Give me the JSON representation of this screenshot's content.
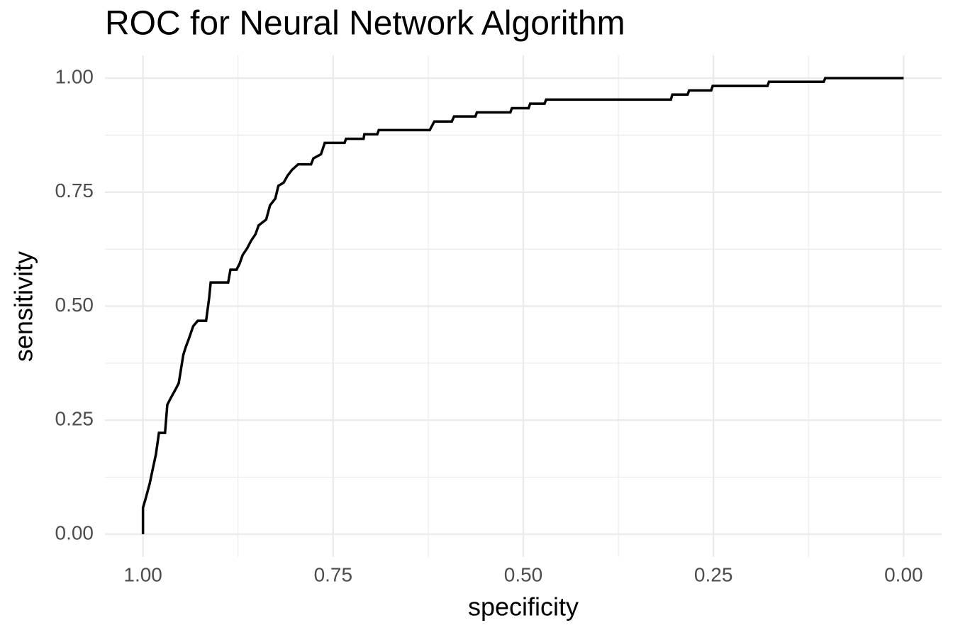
{
  "chart_data": {
    "type": "line",
    "title": "ROC for Neural Network Algorithm",
    "x_label": "specificity",
    "y_label": "sensitivity",
    "x": [
      1.0,
      1.0,
      0.996,
      0.991,
      0.987,
      0.983,
      0.979,
      0.971,
      0.968,
      0.963,
      0.958,
      0.953,
      0.95,
      0.947,
      0.944,
      0.94,
      0.934,
      0.928,
      0.917,
      0.913,
      0.911,
      0.888,
      0.885,
      0.877,
      0.873,
      0.869,
      0.863,
      0.858,
      0.852,
      0.848,
      0.838,
      0.833,
      0.826,
      0.822,
      0.815,
      0.81,
      0.804,
      0.796,
      0.779,
      0.776,
      0.766,
      0.761,
      0.735,
      0.733,
      0.71,
      0.709,
      0.692,
      0.69,
      0.623,
      0.617,
      0.594,
      0.591,
      0.563,
      0.561,
      0.517,
      0.515,
      0.493,
      0.491,
      0.472,
      0.47,
      0.306,
      0.304,
      0.284,
      0.282,
      0.253,
      0.251,
      0.179,
      0.177,
      0.105,
      0.103,
      0.0
    ],
    "values": [
      0.0,
      0.058,
      0.081,
      0.112,
      0.144,
      0.175,
      0.222,
      0.222,
      0.284,
      0.3,
      0.315,
      0.331,
      0.362,
      0.393,
      0.409,
      0.427,
      0.456,
      0.468,
      0.468,
      0.518,
      0.552,
      0.552,
      0.58,
      0.58,
      0.593,
      0.612,
      0.627,
      0.643,
      0.658,
      0.677,
      0.69,
      0.721,
      0.736,
      0.764,
      0.771,
      0.786,
      0.799,
      0.811,
      0.811,
      0.824,
      0.833,
      0.858,
      0.858,
      0.867,
      0.867,
      0.877,
      0.877,
      0.886,
      0.886,
      0.905,
      0.905,
      0.916,
      0.916,
      0.925,
      0.925,
      0.934,
      0.934,
      0.944,
      0.944,
      0.953,
      0.953,
      0.964,
      0.964,
      0.973,
      0.973,
      0.983,
      0.983,
      0.992,
      0.992,
      1.0,
      1.0
    ],
    "color": "#000000",
    "xlim": [
      1.05,
      -0.05
    ],
    "ylim": [
      -0.05,
      1.05
    ],
    "xticks": [
      {
        "value": 1,
        "label": "1.00"
      },
      {
        "value": 0.75,
        "label": "0.75"
      },
      {
        "value": 0.5,
        "label": "0.50"
      },
      {
        "value": 0.25,
        "label": "0.25"
      },
      {
        "value": 0,
        "label": "0.00"
      }
    ],
    "yticks": [
      {
        "value": 0,
        "label": "0.00"
      },
      {
        "value": 0.25,
        "label": "0.25"
      },
      {
        "value": 0.5,
        "label": "0.50"
      },
      {
        "value": 0.75,
        "label": "0.75"
      },
      {
        "value": 1,
        "label": "1.00"
      }
    ],
    "x_minor_ticks": [
      0.875,
      0.625,
      0.375,
      0.125
    ],
    "y_minor_ticks": [
      0.125,
      0.375,
      0.625,
      0.875
    ],
    "grid": true
  }
}
